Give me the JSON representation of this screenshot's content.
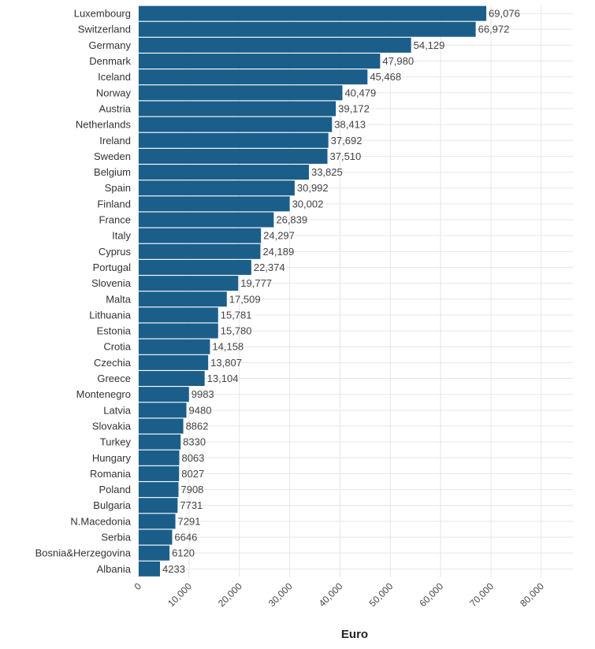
{
  "colors": {
    "bar": "#1b5e8a",
    "grid": "#e6e6e6",
    "text": "#333333"
  },
  "chart_data": {
    "type": "bar",
    "orientation": "horizontal",
    "xlabel": "Euro",
    "xlim": [
      0,
      80000
    ],
    "grid": true,
    "categories": [
      "Luxembourg",
      "Switzerland",
      "Germany",
      "Denmark",
      "Iceland",
      "Norway",
      "Austria",
      "Netherlands",
      "Ireland",
      "Sweden",
      "Belgium",
      "Spain",
      "Finland",
      "France",
      "Italy",
      "Cyprus",
      "Portugal",
      "Slovenia",
      "Malta",
      "Lithuania",
      "Estonia",
      "Crotia",
      "Czechia",
      "Greece",
      "Montenegro",
      "Latvia",
      "Slovakia",
      "Turkey",
      "Hungary",
      "Romania",
      "Poland",
      "Bulgaria",
      "N.Macedonia",
      "Serbia",
      "Bosnia&Herzegovina",
      "Albania"
    ],
    "values": [
      69076,
      66972,
      54129,
      47980,
      45468,
      40479,
      39172,
      38413,
      37692,
      37510,
      33825,
      30992,
      30002,
      26839,
      24297,
      24189,
      22374,
      19777,
      17509,
      15781,
      15780,
      14158,
      13807,
      13104,
      9983,
      9480,
      8862,
      8330,
      8063,
      8027,
      7908,
      7731,
      7291,
      6646,
      6120,
      4233
    ],
    "value_labels": [
      "69,076",
      "66,972",
      "54,129",
      "47,980",
      "45,468",
      "40,479",
      "39,172",
      "38,413",
      "37,692",
      "37,510",
      "33,825",
      "30,992",
      "30,002",
      "26,839",
      "24,297",
      "24,189",
      "22,374",
      "19,777",
      "17,509",
      "15,781",
      "15,780",
      "14,158",
      "13,807",
      "13,104",
      "9983",
      "9480",
      "8862",
      "8330",
      "8063",
      "8027",
      "7908",
      "7731",
      "7291",
      "6646",
      "6120",
      "4233"
    ],
    "x_ticks": [
      0,
      10000,
      20000,
      30000,
      40000,
      50000,
      60000,
      70000,
      80000
    ],
    "x_tick_labels": [
      "0",
      "10,000",
      "20,000",
      "30,000",
      "40,000",
      "50,000",
      "60,000",
      "70,000",
      "80,000"
    ]
  }
}
